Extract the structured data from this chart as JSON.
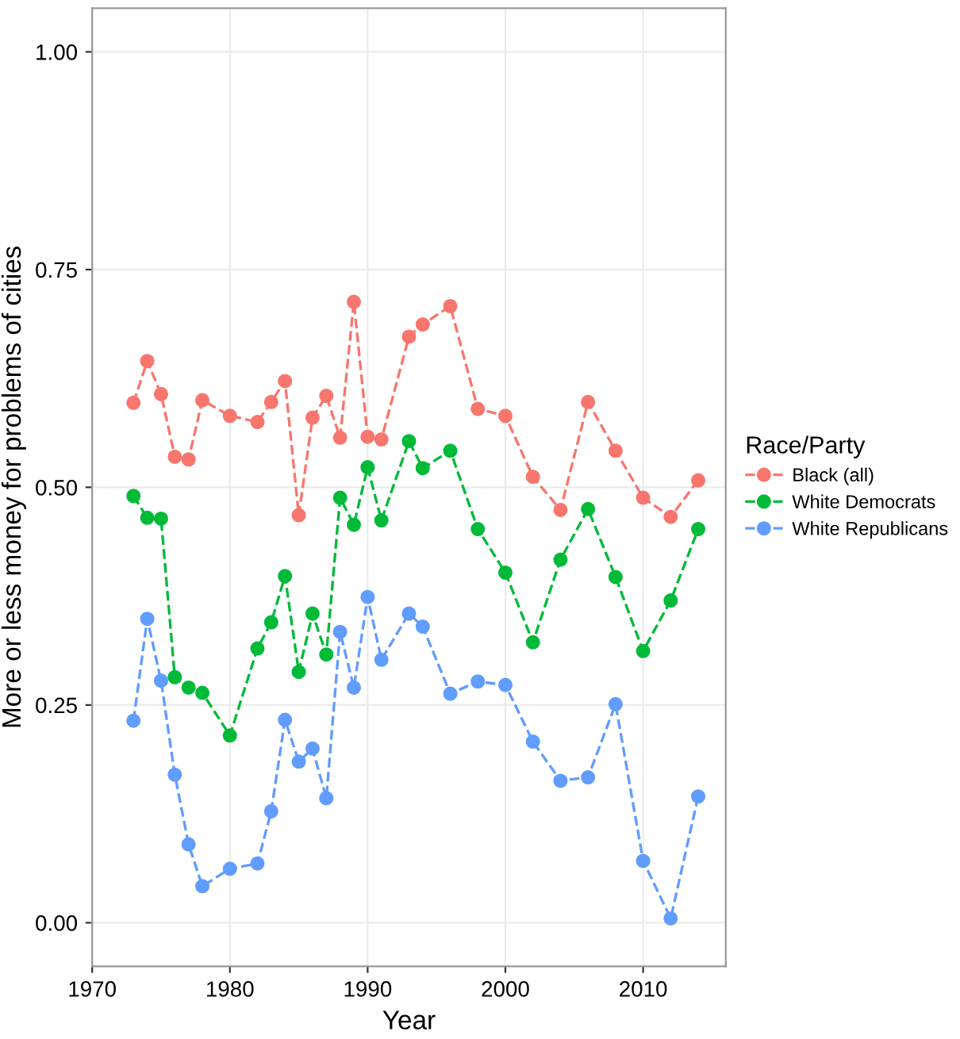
{
  "chart_data": {
    "type": "line",
    "xlabel": "Year",
    "ylabel": "More or less money for problems of cities",
    "legend_title": "Race/Party",
    "x": [
      1973,
      1974,
      1975,
      1976,
      1977,
      1978,
      1980,
      1982,
      1983,
      1984,
      1985,
      1986,
      1987,
      1988,
      1989,
      1990,
      1991,
      1993,
      1994,
      1996,
      1998,
      2000,
      2002,
      2004,
      2006,
      2008,
      2010,
      2012,
      2014
    ],
    "series": [
      {
        "name": "Black (all)",
        "color": "#f8766d",
        "values": [
          0.597,
          0.645,
          0.607,
          0.535,
          0.532,
          0.6,
          0.582,
          0.575,
          0.598,
          0.622,
          0.468,
          0.58,
          0.605,
          0.557,
          0.713,
          0.558,
          0.555,
          0.673,
          0.687,
          0.708,
          0.59,
          0.582,
          0.512,
          0.474,
          0.598,
          0.542,
          0.488,
          0.466,
          0.508
        ]
      },
      {
        "name": "White Democrats",
        "color": "#00ba38",
        "values": [
          0.49,
          0.465,
          0.464,
          0.282,
          0.27,
          0.264,
          0.215,
          0.315,
          0.345,
          0.398,
          0.288,
          0.355,
          0.308,
          0.488,
          0.457,
          0.523,
          0.462,
          0.553,
          0.522,
          0.542,
          0.452,
          0.402,
          0.322,
          0.417,
          0.475,
          0.397,
          0.312,
          0.37,
          0.452
        ]
      },
      {
        "name": "White Republicans",
        "color": "#619cff",
        "values": [
          0.232,
          0.349,
          0.278,
          0.17,
          0.09,
          0.042,
          0.062,
          0.068,
          0.128,
          0.233,
          0.185,
          0.2,
          0.143,
          0.334,
          0.27,
          0.374,
          0.302,
          0.355,
          0.34,
          0.263,
          0.277,
          0.273,
          0.208,
          0.163,
          0.167,
          0.251,
          0.071,
          0.005,
          0.145
        ]
      }
    ],
    "xlim": [
      1970,
      2016
    ],
    "xticks": [
      1970,
      1980,
      1990,
      2000,
      2010
    ],
    "ylim": [
      -0.05,
      1.05
    ],
    "yticks": [
      {
        "value": 0,
        "label": "0.00"
      },
      {
        "value": 0.25,
        "label": "0.25"
      },
      {
        "value": 0.5,
        "label": "0.50"
      },
      {
        "value": 0.75,
        "label": "0.75"
      },
      {
        "value": 1,
        "label": "1.00"
      }
    ],
    "grid": true,
    "legend": "right",
    "marker": "circle",
    "line_style": "dashed"
  }
}
